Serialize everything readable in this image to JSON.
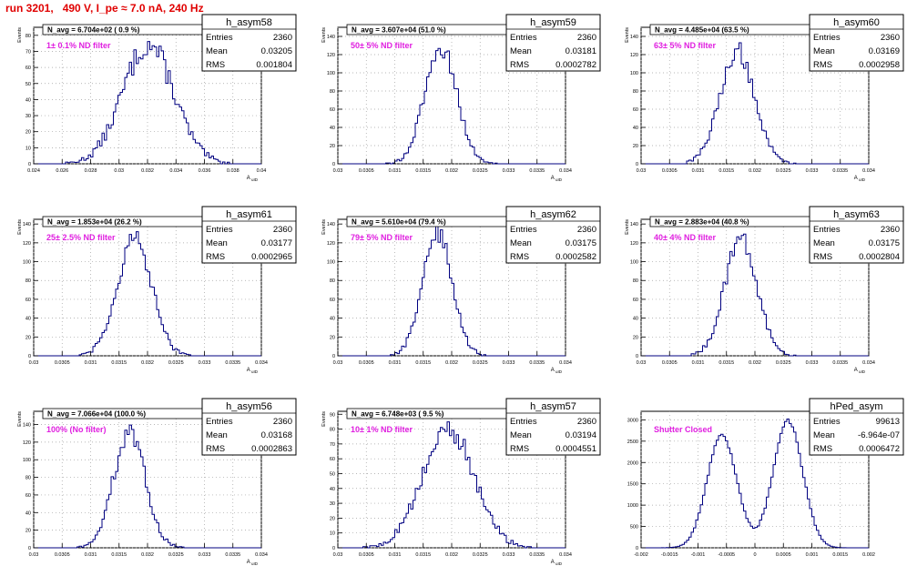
{
  "run_title": "run 3201,   490 V, I_pe ≈ 7.0 nA, 240 Hz",
  "colors": {
    "hist": "#000080",
    "annot": "#e020e0",
    "title": "#e00000",
    "grid": "#a0a0a0"
  },
  "stat_labels": {
    "entries": "Entries",
    "mean": "Mean",
    "rms": "RMS"
  },
  "chart_data": [
    {
      "type": "bar",
      "title": "h_asym58",
      "ylabel": "Events",
      "xlabel": "A_uID",
      "navg": "N_avg = 6.704e+02 ( 0.9 %)",
      "annotation": "1± 0.1% ND filter",
      "stats": {
        "entries": "2360",
        "mean": "0.03205",
        "rms": "0.001804"
      },
      "xlim": [
        0.024,
        0.04
      ],
      "ylim": [
        0,
        85
      ],
      "xticks": [
        0.024,
        0.026,
        0.028,
        0.03,
        0.032,
        0.034,
        0.036,
        0.038,
        0.04
      ],
      "xticklabels": [
        "0.024",
        "0.026",
        "0.028",
        "0.03",
        "0.032",
        "0.034",
        "0.036",
        "0.038",
        "0.04"
      ],
      "yticks": [
        0,
        10,
        20,
        30,
        40,
        50,
        60,
        70,
        80
      ],
      "yticklabels": [
        "0",
        "10",
        "20",
        "30",
        "40",
        "50",
        "60",
        "70",
        "80"
      ],
      "peaks": [
        {
          "mu": 0.03205,
          "sigma": 0.0018,
          "amp": 74
        }
      ]
    },
    {
      "type": "bar",
      "title": "h_asym59",
      "ylabel": "Events",
      "xlabel": "A_uID",
      "navg": "N_avg = 3.607e+04 (51.0 %)",
      "annotation": "50± 5% ND filter",
      "stats": {
        "entries": "2360",
        "mean": "0.03181",
        "rms": "0.0002782"
      },
      "xlim": [
        0.03,
        0.034
      ],
      "ylim": [
        0,
        150
      ],
      "xticks": [
        0.03,
        0.0305,
        0.031,
        0.0315,
        0.032,
        0.0325,
        0.033,
        0.0335,
        0.034
      ],
      "xticklabels": [
        "0.03",
        "0.0305",
        "0.031",
        "0.0315",
        "0.032",
        "0.0325",
        "0.033",
        "0.0335",
        "0.034"
      ],
      "yticks": [
        0,
        20,
        40,
        60,
        80,
        100,
        120,
        140
      ],
      "yticklabels": [
        "0",
        "20",
        "40",
        "60",
        "80",
        "100",
        "120",
        "140"
      ],
      "peaks": [
        {
          "mu": 0.03181,
          "sigma": 0.00028,
          "amp": 128
        }
      ]
    },
    {
      "type": "bar",
      "title": "h_asym60",
      "ylabel": "Events",
      "xlabel": "A_uID",
      "navg": "N_avg = 4.485e+04 (63.5 %)",
      "annotation": "63± 5% ND filter",
      "stats": {
        "entries": "2360",
        "mean": "0.03169",
        "rms": "0.0002958"
      },
      "xlim": [
        0.03,
        0.034
      ],
      "ylim": [
        0,
        150
      ],
      "xticks": [
        0.03,
        0.0305,
        0.031,
        0.0315,
        0.032,
        0.0325,
        0.033,
        0.0335,
        0.034
      ],
      "xticklabels": [
        "0.03",
        "0.0305",
        "0.031",
        "0.0315",
        "0.032",
        "0.0325",
        "0.033",
        "0.0335",
        "0.034"
      ],
      "yticks": [
        0,
        20,
        40,
        60,
        80,
        100,
        120,
        140
      ],
      "yticklabels": [
        "0",
        "20",
        "40",
        "60",
        "80",
        "100",
        "120",
        "140"
      ],
      "peaks": [
        {
          "mu": 0.03169,
          "sigma": 0.0003,
          "amp": 125
        }
      ]
    },
    {
      "type": "bar",
      "title": "h_asym61",
      "ylabel": "Events",
      "xlabel": "A_uID",
      "navg": "N_avg = 1.853e+04 (26.2 %)",
      "annotation": "25± 2.5% ND filter",
      "stats": {
        "entries": "2360",
        "mean": "0.03177",
        "rms": "0.0002965"
      },
      "xlim": [
        0.03,
        0.034
      ],
      "ylim": [
        0,
        145
      ],
      "xticks": [
        0.03,
        0.0305,
        0.031,
        0.0315,
        0.032,
        0.0325,
        0.033,
        0.0335,
        0.034
      ],
      "xticklabels": [
        "0.03",
        "0.0305",
        "0.031",
        "0.0315",
        "0.032",
        "0.0325",
        "0.033",
        "0.0335",
        "0.034"
      ],
      "yticks": [
        0,
        20,
        40,
        60,
        80,
        100,
        120,
        140
      ],
      "yticklabels": [
        "0",
        "20",
        "40",
        "60",
        "80",
        "100",
        "120",
        "140"
      ],
      "peaks": [
        {
          "mu": 0.03177,
          "sigma": 0.0003,
          "amp": 124
        }
      ]
    },
    {
      "type": "bar",
      "title": "h_asym62",
      "ylabel": "Events",
      "xlabel": "A_uID",
      "navg": "N_avg = 5.610e+04 (79.4 %)",
      "annotation": "79± 5% ND filter",
      "stats": {
        "entries": "2360",
        "mean": "0.03175",
        "rms": "0.0002582"
      },
      "xlim": [
        0.03,
        0.034
      ],
      "ylim": [
        0,
        145
      ],
      "xticks": [
        0.03,
        0.0305,
        0.031,
        0.0315,
        0.032,
        0.0325,
        0.033,
        0.0335,
        0.034
      ],
      "xticklabels": [
        "0.03",
        "0.0305",
        "0.031",
        "0.0315",
        "0.032",
        "0.0325",
        "0.033",
        "0.0335",
        "0.034"
      ],
      "yticks": [
        0,
        20,
        40,
        60,
        80,
        100,
        120,
        140
      ],
      "yticklabels": [
        "0",
        "20",
        "40",
        "60",
        "80",
        "100",
        "120",
        "140"
      ],
      "peaks": [
        {
          "mu": 0.03175,
          "sigma": 0.00026,
          "amp": 130
        }
      ]
    },
    {
      "type": "bar",
      "title": "h_asym63",
      "ylabel": "Events",
      "xlabel": "A_uID",
      "navg": "N_avg = 2.883e+04 (40.8 %)",
      "annotation": "40± 4% ND filter",
      "stats": {
        "entries": "2360",
        "mean": "0.03175",
        "rms": "0.0002804"
      },
      "xlim": [
        0.03,
        0.034
      ],
      "ylim": [
        0,
        145
      ],
      "xticks": [
        0.03,
        0.0305,
        0.031,
        0.0315,
        0.032,
        0.0325,
        0.033,
        0.0335,
        0.034
      ],
      "xticklabels": [
        "0.03",
        "0.0305",
        "0.031",
        "0.0315",
        "0.032",
        "0.0325",
        "0.033",
        "0.0335",
        "0.034"
      ],
      "yticks": [
        0,
        20,
        40,
        60,
        80,
        100,
        120,
        140
      ],
      "yticklabels": [
        "0",
        "20",
        "40",
        "60",
        "80",
        "100",
        "120",
        "140"
      ],
      "peaks": [
        {
          "mu": 0.03175,
          "sigma": 0.00028,
          "amp": 126
        }
      ]
    },
    {
      "type": "bar",
      "title": "h_asym56",
      "ylabel": "Events",
      "xlabel": "A_uID",
      "navg": "N_avg = 7.066e+04 (100.0 %)",
      "annotation": "100% (No filter)",
      "stats": {
        "entries": "2360",
        "mean": "0.03168",
        "rms": "0.0002863"
      },
      "xlim": [
        0.03,
        0.034
      ],
      "ylim": [
        0,
        155
      ],
      "xticks": [
        0.03,
        0.0305,
        0.031,
        0.0315,
        0.032,
        0.0325,
        0.033,
        0.0335,
        0.034
      ],
      "xticklabels": [
        "0.03",
        "0.0305",
        "0.031",
        "0.0315",
        "0.032",
        "0.0325",
        "0.033",
        "0.0335",
        "0.034"
      ],
      "yticks": [
        0,
        20,
        40,
        60,
        80,
        100,
        120,
        140
      ],
      "yticklabels": [
        "0",
        "20",
        "40",
        "60",
        "80",
        "100",
        "120",
        "140"
      ],
      "peaks": [
        {
          "mu": 0.03168,
          "sigma": 0.00028,
          "amp": 130
        }
      ]
    },
    {
      "type": "bar",
      "title": "h_asym57",
      "ylabel": "Events",
      "xlabel": "A_uID",
      "navg": "N_avg = 6.748e+03 ( 9.5 %)",
      "annotation": "10± 1% ND filter",
      "stats": {
        "entries": "2360",
        "mean": "0.03194",
        "rms": "0.0004551"
      },
      "xlim": [
        0.03,
        0.034
      ],
      "ylim": [
        0,
        92
      ],
      "xticks": [
        0.03,
        0.0305,
        0.031,
        0.0315,
        0.032,
        0.0325,
        0.033,
        0.0335,
        0.034
      ],
      "xticklabels": [
        "0.03",
        "0.0305",
        "0.031",
        "0.0315",
        "0.032",
        "0.0325",
        "0.033",
        "0.0335",
        "0.034"
      ],
      "yticks": [
        0,
        10,
        20,
        30,
        40,
        50,
        60,
        70,
        80,
        90
      ],
      "yticklabels": [
        "0",
        "10",
        "20",
        "30",
        "40",
        "50",
        "60",
        "70",
        "80",
        "90"
      ],
      "peaks": [
        {
          "mu": 0.03194,
          "sigma": 0.00045,
          "amp": 80
        }
      ]
    },
    {
      "type": "bar",
      "title": "hPed_asym",
      "ylabel": "",
      "xlabel": "",
      "navg": "",
      "annotation": "Shutter Closed",
      "stats": {
        "entries": "99613",
        "mean": "-6.964e-07",
        "rms": "0.0006472"
      },
      "xlim": [
        -0.002,
        0.002
      ],
      "ylim": [
        0,
        3200
      ],
      "xticks": [
        -0.002,
        -0.0015,
        -0.001,
        -0.0005,
        0,
        0.0005,
        0.001,
        0.0015,
        0.002
      ],
      "xticklabels": [
        "-0.002",
        "-0.0015",
        "-0.001",
        "-0.0005",
        "0",
        "0.0005",
        "0.001",
        "0.0015",
        "0.002"
      ],
      "yticks": [
        0,
        500,
        1000,
        1500,
        2000,
        2500,
        3000
      ],
      "yticklabels": [
        "0",
        "500",
        "1000",
        "1500",
        "2000",
        "2500",
        "3000"
      ],
      "peaks": [
        {
          "mu": -0.00058,
          "sigma": 0.00026,
          "amp": 2650
        },
        {
          "mu": 0.00058,
          "sigma": 0.00026,
          "amp": 2980
        }
      ]
    }
  ]
}
